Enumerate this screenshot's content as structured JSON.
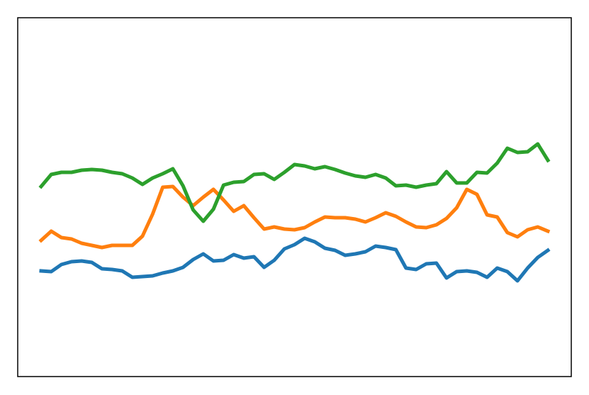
{
  "chart_data": {
    "type": "line",
    "title": "",
    "xlabel": "",
    "ylabel": "",
    "x": [
      0,
      1,
      2,
      3,
      4,
      5,
      6,
      7,
      8,
      9,
      10,
      11,
      12,
      13,
      14,
      15,
      16,
      17,
      18,
      19,
      20,
      21,
      22,
      23,
      24,
      25,
      26,
      27,
      28,
      29,
      30,
      31,
      32,
      33,
      34,
      35,
      36,
      37,
      38,
      39,
      40,
      41,
      42,
      43,
      44,
      45,
      46,
      47,
      48,
      49,
      50
    ],
    "xlim": [
      -2.31,
      52.31
    ],
    "ylim": [
      0,
      5.06
    ],
    "grid": false,
    "ticks_visible": false,
    "series": [
      {
        "color": "#1f77b4",
        "values": [
          1.49,
          1.48,
          1.58,
          1.62,
          1.63,
          1.61,
          1.52,
          1.51,
          1.49,
          1.4,
          1.41,
          1.42,
          1.46,
          1.49,
          1.54,
          1.65,
          1.73,
          1.63,
          1.64,
          1.72,
          1.67,
          1.69,
          1.54,
          1.64,
          1.8,
          1.86,
          1.95,
          1.9,
          1.81,
          1.78,
          1.71,
          1.73,
          1.76,
          1.84,
          1.82,
          1.79,
          1.53,
          1.51,
          1.59,
          1.6,
          1.39,
          1.48,
          1.49,
          1.47,
          1.4,
          1.53,
          1.48,
          1.35,
          1.53,
          1.68,
          1.78
        ]
      },
      {
        "color": "#ff7f0e",
        "values": [
          1.92,
          2.05,
          1.96,
          1.94,
          1.88,
          1.85,
          1.82,
          1.85,
          1.85,
          1.85,
          1.98,
          2.29,
          2.67,
          2.68,
          2.53,
          2.41,
          2.53,
          2.64,
          2.49,
          2.33,
          2.41,
          2.24,
          2.08,
          2.11,
          2.08,
          2.07,
          2.1,
          2.18,
          2.25,
          2.24,
          2.24,
          2.22,
          2.18,
          2.24,
          2.31,
          2.26,
          2.18,
          2.11,
          2.1,
          2.14,
          2.23,
          2.38,
          2.64,
          2.57,
          2.28,
          2.25,
          2.03,
          1.97,
          2.07,
          2.11,
          2.05
        ]
      },
      {
        "color": "#2ca02c",
        "values": [
          2.68,
          2.85,
          2.88,
          2.88,
          2.91,
          2.92,
          2.91,
          2.88,
          2.86,
          2.8,
          2.71,
          2.8,
          2.86,
          2.93,
          2.69,
          2.35,
          2.19,
          2.36,
          2.7,
          2.74,
          2.75,
          2.85,
          2.86,
          2.78,
          2.88,
          2.99,
          2.97,
          2.93,
          2.96,
          2.92,
          2.87,
          2.83,
          2.81,
          2.85,
          2.8,
          2.69,
          2.7,
          2.67,
          2.7,
          2.72,
          2.89,
          2.73,
          2.73,
          2.88,
          2.87,
          3.01,
          3.22,
          3.16,
          3.17,
          3.28,
          3.05
        ]
      }
    ]
  }
}
